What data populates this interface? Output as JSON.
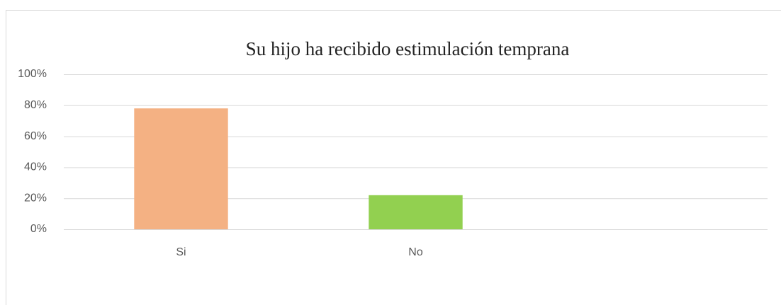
{
  "chart_data": {
    "type": "bar",
    "title": "Su hijo ha recibido estimulación temprana",
    "categories": [
      "Si",
      "No",
      null
    ],
    "values": [
      78,
      22,
      null
    ],
    "colors": [
      "#f4b183",
      "#92d050"
    ],
    "ylim": [
      0,
      100
    ],
    "yticks": [
      {
        "value": 0,
        "label": "0%"
      },
      {
        "value": 20,
        "label": "20%"
      },
      {
        "value": 40,
        "label": "40%"
      },
      {
        "value": 60,
        "label": "60%"
      },
      {
        "value": 80,
        "label": "80%"
      },
      {
        "value": 100,
        "label": "100%"
      }
    ],
    "grid": true
  }
}
